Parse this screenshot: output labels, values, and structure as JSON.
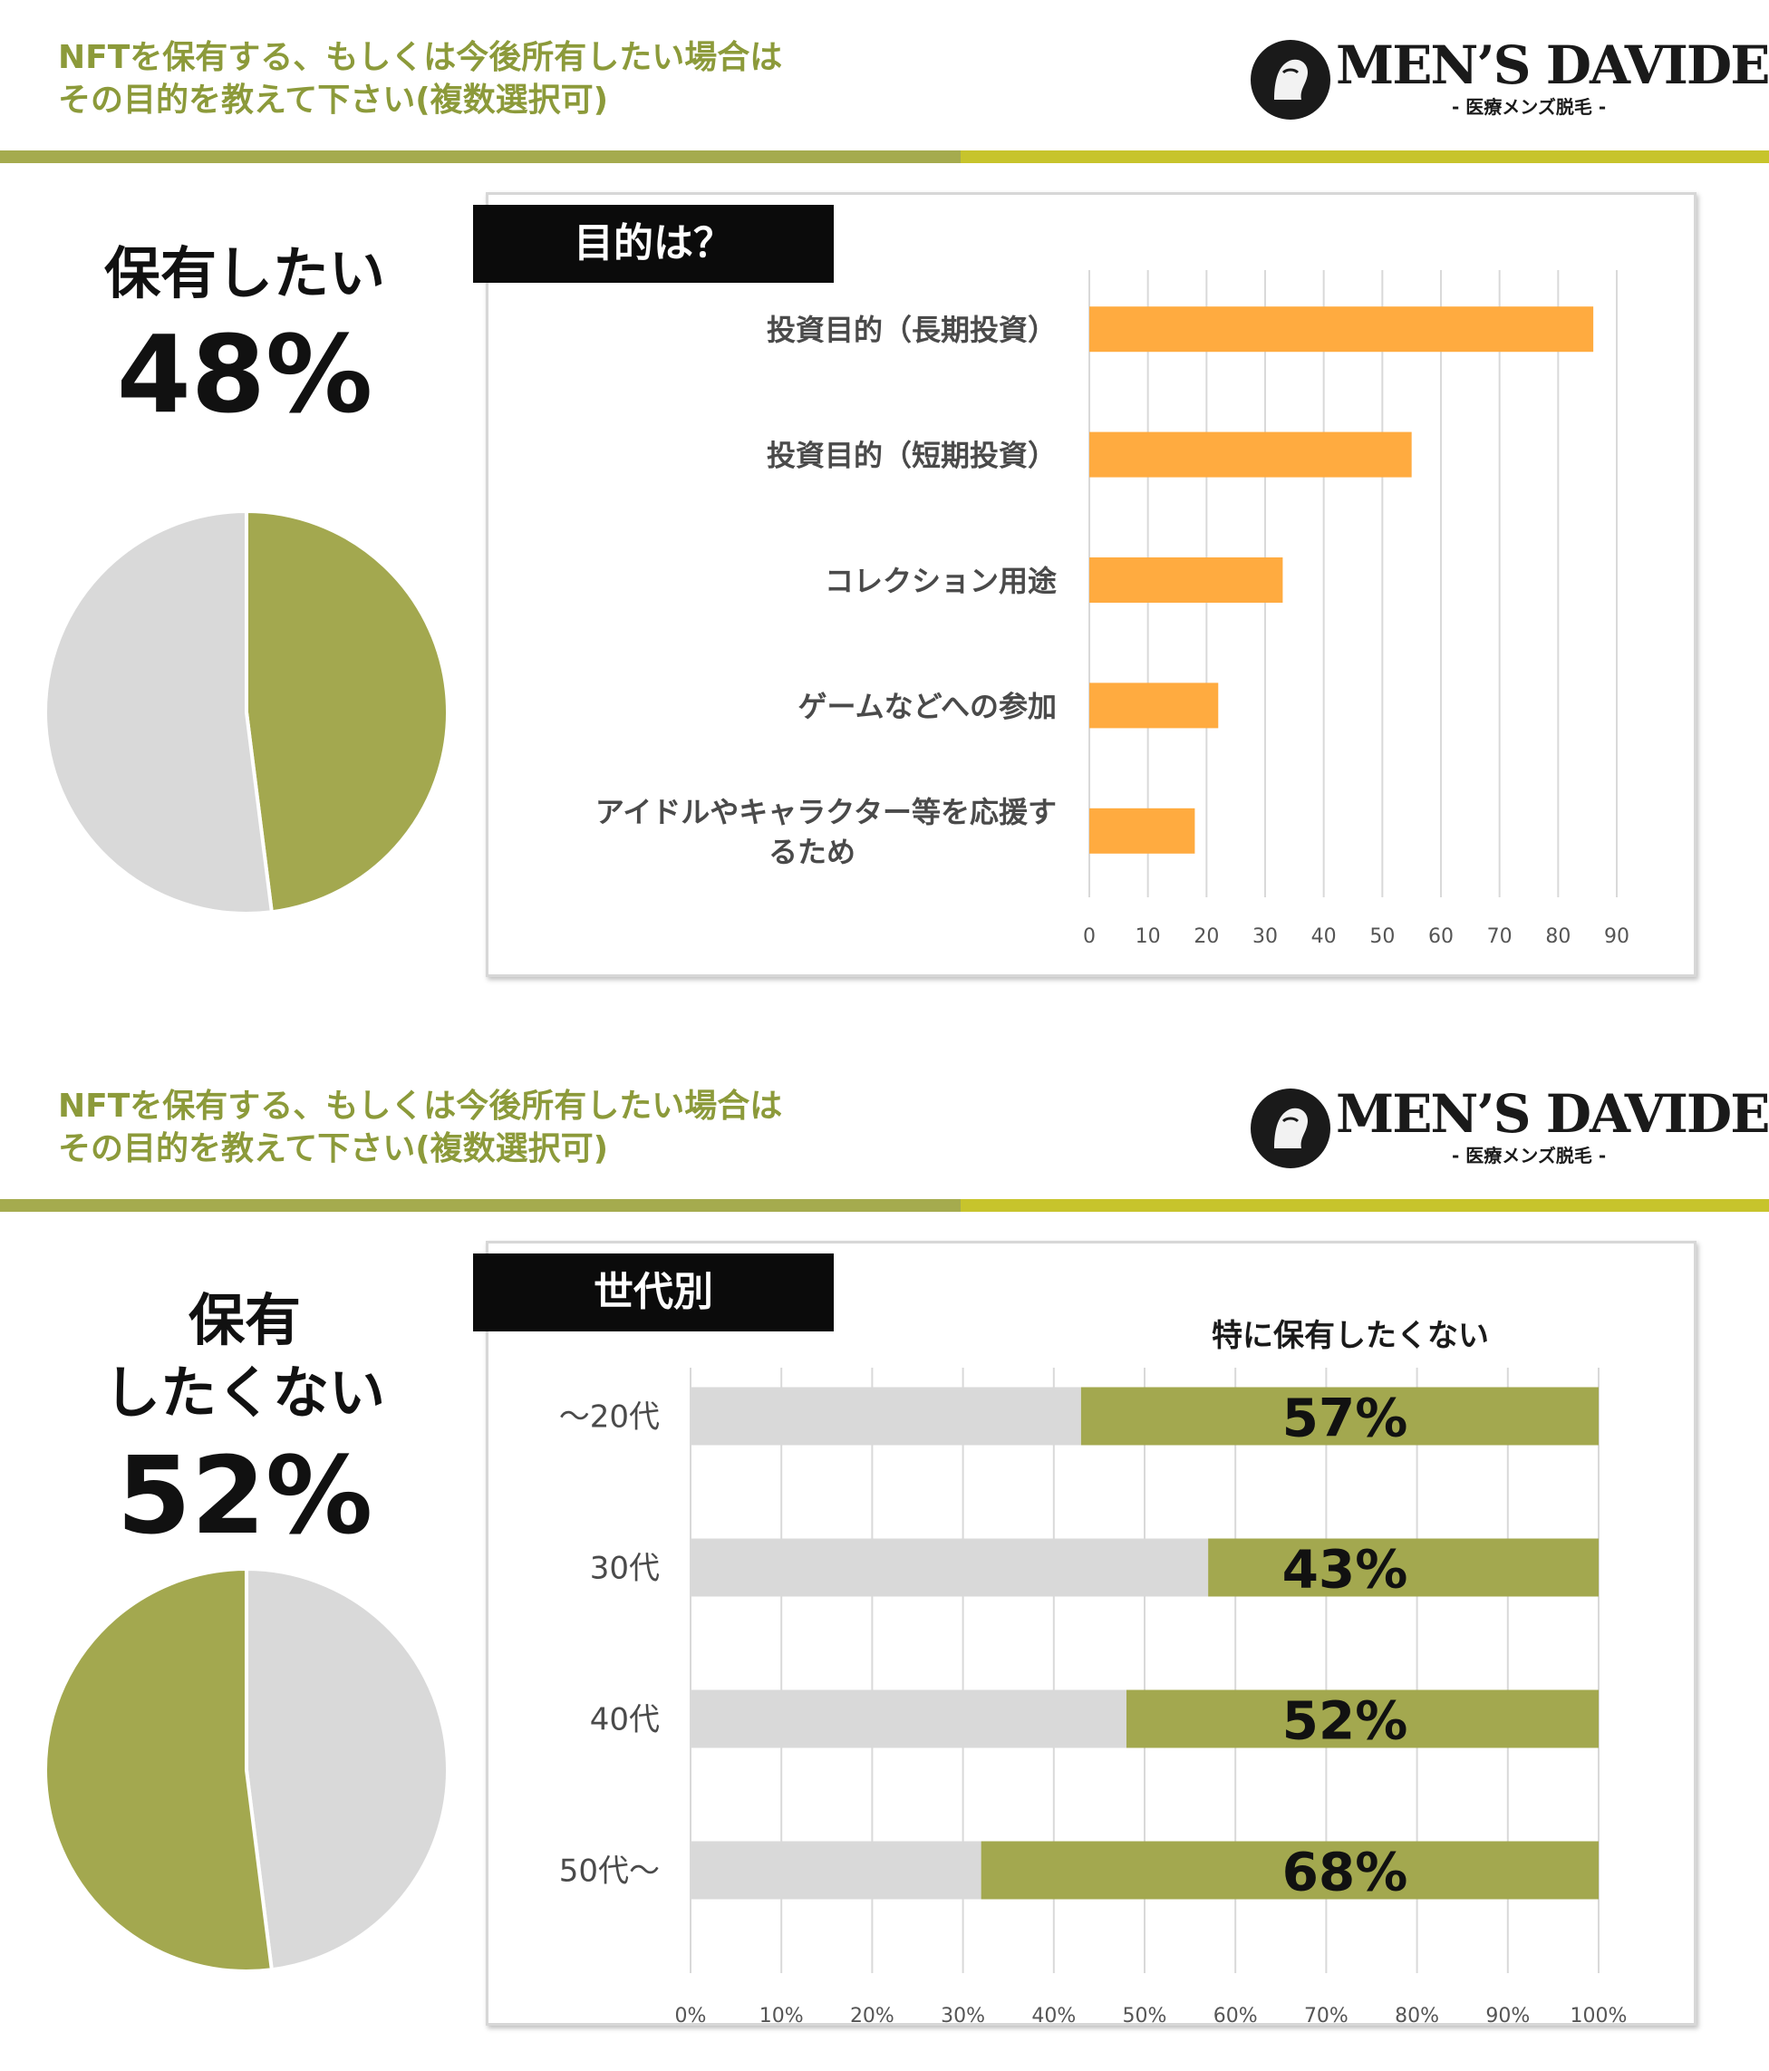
{
  "panels": [
    {
      "question": {
        "line1": "NFTを保有する、もしくは今後所有したい場合は",
        "line2": "その目的を教えて下さい(複数選択可)"
      },
      "logo": {
        "name": "MEN’S DAVIDE",
        "sub": "- 医療メンズ脱毛 -"
      },
      "stat": {
        "label_lines": [
          "保有したい"
        ],
        "percent": "48%"
      },
      "pie": {
        "values": [
          48,
          52
        ],
        "colors": [
          "#a3a84f",
          "#d9d9d9"
        ]
      },
      "chart_tag": "目的は？"
    },
    {
      "question": {
        "line1": "NFTを保有する、もしくは今後所有したい場合は",
        "line2": "その目的を教えて下さい(複数選択可)"
      },
      "logo": {
        "name": "MEN’S DAVIDE",
        "sub": "- 医療メンズ脱毛 -"
      },
      "stat": {
        "label_lines": [
          "保有",
          "したくない"
        ],
        "percent": "52%"
      },
      "pie": {
        "values": [
          52,
          48
        ],
        "colors": [
          "#a3a84f",
          "#d9d9d9"
        ]
      },
      "chart_tag": "世代別"
    }
  ],
  "colors": {
    "accent_text": "#8c9a3a",
    "stripe_left": "#a5ab4e",
    "stripe_right": "#c7c42c",
    "bar_orange": "#ffab40",
    "bar_olive": "#a3a84f",
    "bar_gray": "#d9d9d9"
  },
  "chart_data": [
    {
      "type": "bar",
      "orientation": "horizontal",
      "title": "目的は？",
      "categories": [
        "投資目的（長期投資）",
        "投資目的（短期投資）",
        "コレクション用途",
        "ゲームなどへの参加",
        "アイドルやキャラクター等を応援するため"
      ],
      "category_label_lines": [
        [
          "投資目的（長期投資）"
        ],
        [
          "投資目的（短期投資）"
        ],
        [
          "コレクション用途"
        ],
        [
          "ゲームなどへの参加"
        ],
        [
          "アイドルやキャラクター等を応援す",
          "るため"
        ]
      ],
      "values": [
        86,
        55,
        33,
        22,
        18
      ],
      "xlim": [
        0,
        90
      ],
      "xticks": [
        "0",
        "10",
        "20",
        "30",
        "40",
        "50",
        "60",
        "70",
        "80",
        "90"
      ],
      "grid": true,
      "legend": "none"
    },
    {
      "type": "bar",
      "orientation": "horizontal",
      "stacked": true,
      "title": "世代別",
      "categories": [
        "〜20代",
        "30代",
        "40代",
        "50代〜"
      ],
      "series": [
        {
          "values": [
            43,
            57,
            48,
            32
          ],
          "color": "#d9d9d9"
        },
        {
          "name": "特に保有したくない",
          "values": [
            57,
            43,
            52,
            68
          ],
          "color": "#a3a84f",
          "data_labels": [
            "57%",
            "43%",
            "52%",
            "68%"
          ]
        }
      ],
      "series_label": "特に保有したくない",
      "xlim": [
        0,
        100
      ],
      "xticks": [
        "0%",
        "10%",
        "20%",
        "30%",
        "40%",
        "50%",
        "60%",
        "70%",
        "80%",
        "90%",
        "100%"
      ],
      "grid": true,
      "legend": "top"
    }
  ]
}
